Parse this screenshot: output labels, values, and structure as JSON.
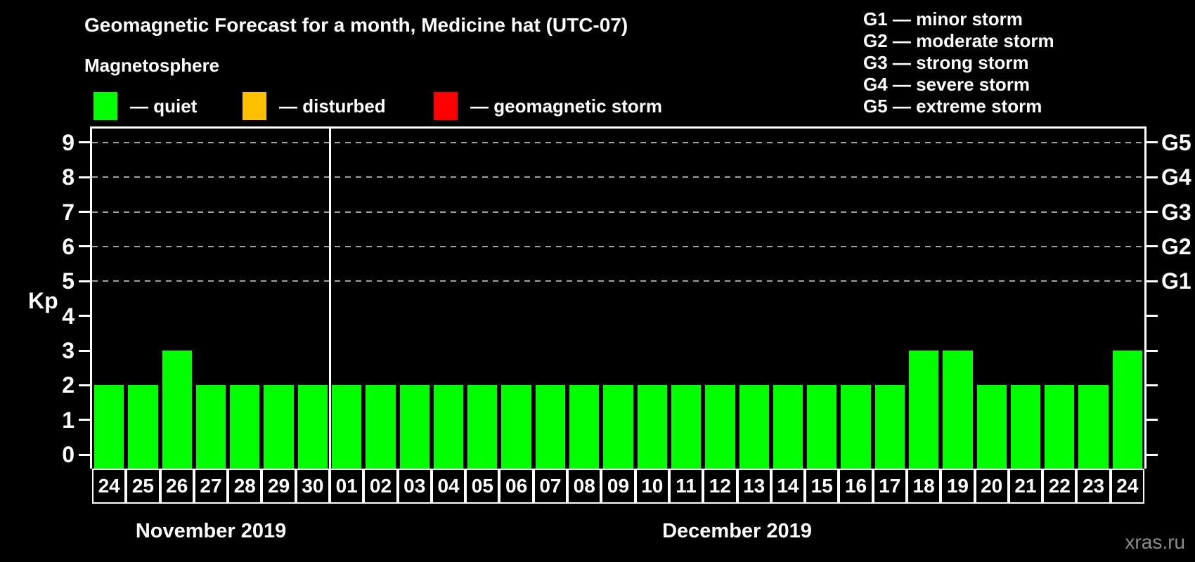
{
  "title": "Geomagnetic Forecast for a month, Medicine hat (UTC-07)",
  "magnetosphere": {
    "label": "Magnetosphere",
    "legend": [
      {
        "name": "quiet",
        "label": "— quiet",
        "color": "#00ff00"
      },
      {
        "name": "disturbed",
        "label": "— disturbed",
        "color": "#ffc000"
      },
      {
        "name": "geomagnetic-storm",
        "label": "— geomagnetic storm",
        "color": "#ff0000"
      }
    ]
  },
  "g_legend": [
    "G1 — minor storm",
    "G2 — moderate storm",
    "G3 — strong storm",
    "G4 — severe storm",
    "G5 — extreme storm"
  ],
  "watermark": "xras.ru",
  "chart_data": {
    "type": "bar",
    "ylabel": "Kp",
    "ylim": [
      -0.4,
      9.4
    ],
    "y_ticks": [
      0,
      1,
      2,
      3,
      4,
      5,
      6,
      7,
      8,
      9
    ],
    "grid_levels": [
      5,
      6,
      7,
      8,
      9
    ],
    "right_labels": {
      "5": "G1",
      "6": "G2",
      "7": "G3",
      "8": "G4",
      "9": "G5"
    },
    "grid_color": "#a0a0a0",
    "frame_color": "#ffffff",
    "color_rules": {
      "quiet_max": 3,
      "disturbed": 4,
      "storm_min": 5
    },
    "months": [
      {
        "label": "November 2019",
        "categories": [
          "24",
          "25",
          "26",
          "27",
          "28",
          "29",
          "30"
        ],
        "values": [
          2,
          2,
          3,
          2,
          2,
          2,
          2
        ]
      },
      {
        "label": "December 2019",
        "categories": [
          "01",
          "02",
          "03",
          "04",
          "05",
          "06",
          "07",
          "08",
          "09",
          "10",
          "11",
          "12",
          "13",
          "14",
          "15",
          "16",
          "17",
          "18",
          "19",
          "20",
          "21",
          "22",
          "23",
          "24"
        ],
        "values": [
          2,
          2,
          2,
          2,
          2,
          2,
          2,
          2,
          2,
          2,
          2,
          2,
          2,
          2,
          2,
          2,
          2,
          3,
          3,
          2,
          2,
          2,
          2,
          3
        ]
      }
    ]
  }
}
